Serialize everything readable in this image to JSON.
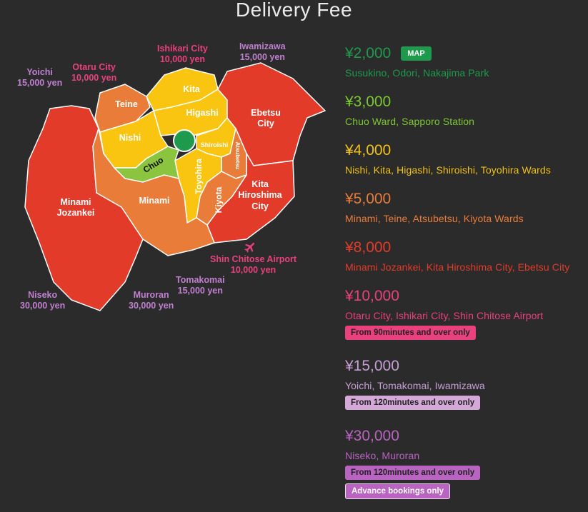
{
  "page": {
    "title": "Delivery Fee"
  },
  "map": {
    "wards": {
      "teine": "Teine",
      "kita": "Kita",
      "higashi": "Higashi",
      "nishi": "Nishi",
      "chuo": "Chuo",
      "shiroishi": "Shiroishi",
      "atsubetsu": "Atsubetsu",
      "toyohira": "Toyohira",
      "ebetsu": [
        "Ebetsu",
        "City"
      ],
      "kiyota": "Kiyota",
      "kita_hiroshima": [
        "Kita",
        "Hiroshima",
        "City"
      ],
      "minami": "Minami",
      "minami_jozankei": [
        "Minami",
        "Jozankei"
      ]
    },
    "external": {
      "yoichi": {
        "name": "Yoichi",
        "price": "15,000 yen"
      },
      "otaru": {
        "name": "Otaru City",
        "price": "10,000 yen"
      },
      "ishikari": {
        "name": "Ishikari City",
        "price": "10,000 yen"
      },
      "iwamizawa": {
        "name": "Iwamizawa",
        "price": "15,000 yen"
      },
      "shin_chitose": {
        "name": "Shin Chitose Airport",
        "price": "10,000 yen"
      },
      "tomakomai": {
        "name": "Tomakomai",
        "price": "15,000 yen"
      },
      "muroran": {
        "name": "Muroran",
        "price": "30,000 yen"
      },
      "niseko": {
        "name": "Niseko",
        "price": "30,000 yen"
      }
    },
    "icons": {
      "airport": "airplane-icon",
      "center": "center-marker-icon"
    }
  },
  "tiers": [
    {
      "price": "¥2,000",
      "areas": "Susukino, Odori, Nakajima Park",
      "color": "#1e9a4d",
      "map_button": "MAP"
    },
    {
      "price": "¥3,000",
      "areas": "Chuo Ward, Sapporo Station",
      "color": "#7cc832"
    },
    {
      "price": "¥4,000",
      "areas": "Nishi, Kita, Higashi, Shiroishi, Toyohira Wards",
      "color": "#f2c21a"
    },
    {
      "price": "¥5,000",
      "areas": "Minami, Teine, Atsubetsu, Kiyota Wards",
      "color": "#ea7c3a"
    },
    {
      "price": "¥8,000",
      "areas": "Minami Jozankei, Kita Hiroshima City, Ebetsu City",
      "color": "#e33b2a"
    },
    {
      "price": "¥10,000",
      "areas": "Otaru City, Ishikari City, Shin Chitose Airport",
      "color": "#e8417d",
      "badges": [
        {
          "text": "From 90minutes and over only",
          "bg": "#e8417d"
        }
      ]
    },
    {
      "price": "¥15,000",
      "areas": "Yoichi, Tomakomai, Iwamizawa",
      "color": "#c79ed6",
      "badges": [
        {
          "text": "From 120minutes and over only",
          "bg": "#d4a9d8"
        }
      ]
    },
    {
      "price": "¥30,000",
      "areas": "Niseko, Muroran",
      "color": "#b864c0",
      "badges": [
        {
          "text": "From 120minutes and over only",
          "bg": "#b864c0"
        },
        {
          "text": "Advance bookings only",
          "bg": "#b864c0",
          "outline": true
        }
      ]
    }
  ]
}
